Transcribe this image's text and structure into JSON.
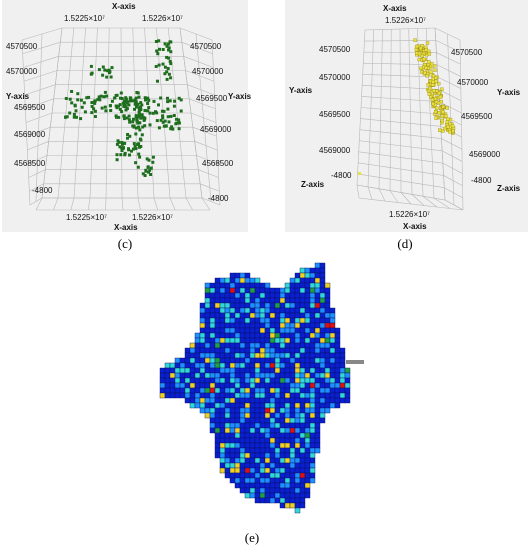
{
  "panel_c": {
    "caption": "(c)",
    "x_axis_label_top": "X-axis",
    "x_axis_label_bottom": "X-axis",
    "y_axis_label_left": "Y-axis",
    "y_axis_label_right": "Y-axis",
    "x_ticks_top": [
      "1.5225×10⁷",
      "1.5226×10⁷"
    ],
    "x_ticks_bottom": [
      "1.5225×10⁷",
      "1.5226×10⁷"
    ],
    "y_ticks_left": [
      "4570500",
      "4570000",
      "4569500",
      "4569000",
      "4568500",
      "-4800"
    ],
    "y_ticks_right": [
      "4570500",
      "4570000",
      "4569500",
      "4569000",
      "4568500",
      "-4800"
    ],
    "voxel_color": "#1f6e1f"
  },
  "panel_d": {
    "caption": "(d)",
    "x_axis_label_top": "X-axis",
    "x_axis_label_bottom": "X-axis",
    "y_axis_label_left": "Y-axis",
    "y_axis_label_right": "Y-axis",
    "z_axis_label_left": "Z-axis",
    "z_axis_label_right": "Z-axis",
    "x_tick_top": "1.5226×10⁷",
    "x_tick_bottom": "1.5226×10⁷",
    "y_ticks_left": [
      "4570500",
      "4570000",
      "4569500",
      "4569000",
      "-4800"
    ],
    "y_ticks_right": [
      "4570500",
      "4570000",
      "4569500",
      "4569000",
      "-4800"
    ],
    "voxel_color": "#e8e040"
  },
  "panel_e": {
    "caption": "(e)",
    "colors": {
      "dark_blue": "#0a1fd0",
      "light_blue": "#1e90ff",
      "cyan": "#30d8d8",
      "yellow": "#f0d020",
      "red": "#e01010",
      "green": "#20a040"
    }
  }
}
